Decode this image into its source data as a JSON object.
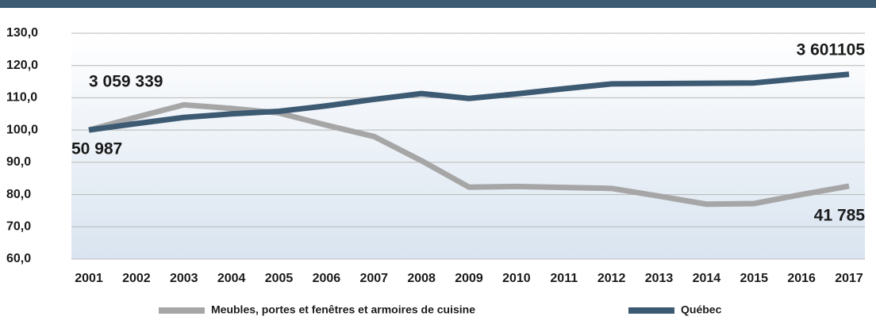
{
  "chart_data": {
    "type": "line",
    "categories": [
      "2001",
      "2002",
      "2003",
      "2004",
      "2005",
      "2006",
      "2007",
      "2008",
      "2009",
      "2010",
      "2011",
      "2012",
      "2013",
      "2014",
      "2015",
      "2016",
      "2017"
    ],
    "series": [
      {
        "name": "Meubles, portes et fenêtres et armoires de cuisine",
        "color": "#a6a6a6",
        "values": [
          100,
          104,
          107.8,
          106.7,
          105.3,
          101.5,
          98,
          90.5,
          82.3,
          82.5,
          82.2,
          81.9,
          79.5,
          77,
          77.2,
          80,
          82.6
        ]
      },
      {
        "name": "Québec",
        "color": "#3d5a73",
        "values": [
          100,
          102,
          103.9,
          105,
          105.8,
          107.5,
          109.5,
          111.3,
          109.8,
          111.2,
          112.8,
          114.3,
          114.4,
          114.5,
          114.6,
          116,
          117.3
        ]
      }
    ],
    "ylim": [
      60,
      130
    ],
    "yticks": [
      {
        "value": 60,
        "label": "60,0"
      },
      {
        "value": 70,
        "label": "70,0"
      },
      {
        "value": 80,
        "label": "80,0"
      },
      {
        "value": 90,
        "label": "90,0"
      },
      {
        "value": 100,
        "label": "100,0"
      },
      {
        "value": 110,
        "label": "110,0"
      },
      {
        "value": 120,
        "label": "120,0"
      },
      {
        "value": 130,
        "label": "130,0"
      }
    ],
    "annotations": [
      "3 059 339",
      "50 987",
      "3 601105",
      "41 785"
    ],
    "grid": true
  }
}
